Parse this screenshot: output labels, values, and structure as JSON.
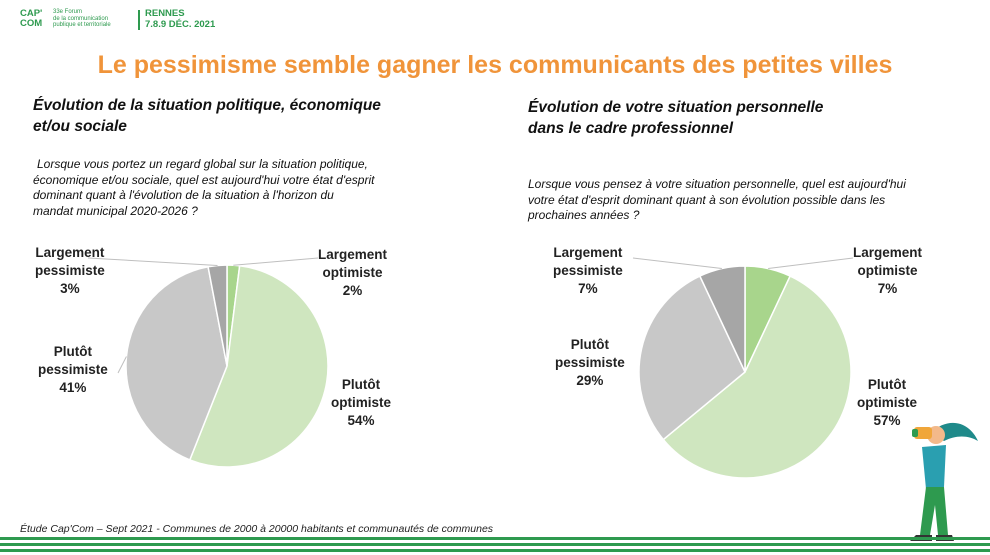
{
  "logo": {
    "brand_line1": "CAP'",
    "brand_line2": "COM",
    "forum_line1": "33e Forum",
    "forum_line2": "de la communication",
    "forum_line3": "publique et territoriale",
    "city": "RENNES",
    "dates": "7.8.9 DÉC. 2021"
  },
  "title": "Le pessimisme semble gagner les communicants des petites villes",
  "source": "Étude Cap'Com – Sept 2021 - Communes de 2000 à 20000 habitants et communautés de communes",
  "colors": {
    "title": "#f0943a",
    "brand_green": "#2e9a4f",
    "largement_optimiste": "#a8d58c",
    "plutot_optimiste": "#cfe6bf",
    "plutot_pessimiste": "#c8c8c8",
    "largement_pessimiste": "#a6a6a6"
  },
  "chart_data": [
    {
      "type": "pie",
      "title_line1": "Évolution de la situation politique, économique",
      "title_line2": "et/ou sociale",
      "question_lines": [
        "Lorsque vous portez un regard global sur la situation politique,",
        "économique et/ou sociale, quel est aujourd'hui votre état d'esprit",
        "dominant quant à l'évolution de la situation à l'horizon du",
        "mandat municipal 2020-2026 ?"
      ],
      "slices": [
        {
          "line1": "Largement",
          "line2": "optimiste",
          "pct": "2%",
          "value": 2,
          "color": "#a8d58c"
        },
        {
          "line1": "Plutôt",
          "line2": "optimiste",
          "pct": "54%",
          "value": 54,
          "color": "#cfe6bf"
        },
        {
          "line1": "Plutôt",
          "line2": "pessimiste",
          "pct": "41%",
          "value": 41,
          "color": "#c8c8c8"
        },
        {
          "line1": "Largement",
          "line2": "pessimiste",
          "pct": "3%",
          "value": 3,
          "color": "#a6a6a6"
        }
      ]
    },
    {
      "type": "pie",
      "title_line1": "Évolution de votre situation personnelle",
      "title_line2": "dans le cadre professionnel",
      "question_lines": [
        "Lorsque vous pensez à votre situation personnelle, quel est aujourd'hui",
        "votre état d'esprit dominant quant à son évolution possible dans les",
        "prochaines années ?"
      ],
      "slices": [
        {
          "line1": "Largement",
          "line2": "optimiste",
          "pct": "7%",
          "value": 7,
          "color": "#a8d58c"
        },
        {
          "line1": "Plutôt",
          "line2": "optimiste",
          "pct": "57%",
          "value": 57,
          "color": "#cfe6bf"
        },
        {
          "line1": "Plutôt",
          "line2": "pessimiste",
          "pct": "29%",
          "value": 29,
          "color": "#c8c8c8"
        },
        {
          "line1": "Largement",
          "line2": "pessimiste",
          "pct": "7%",
          "value": 7,
          "color": "#a6a6a6"
        }
      ]
    }
  ]
}
